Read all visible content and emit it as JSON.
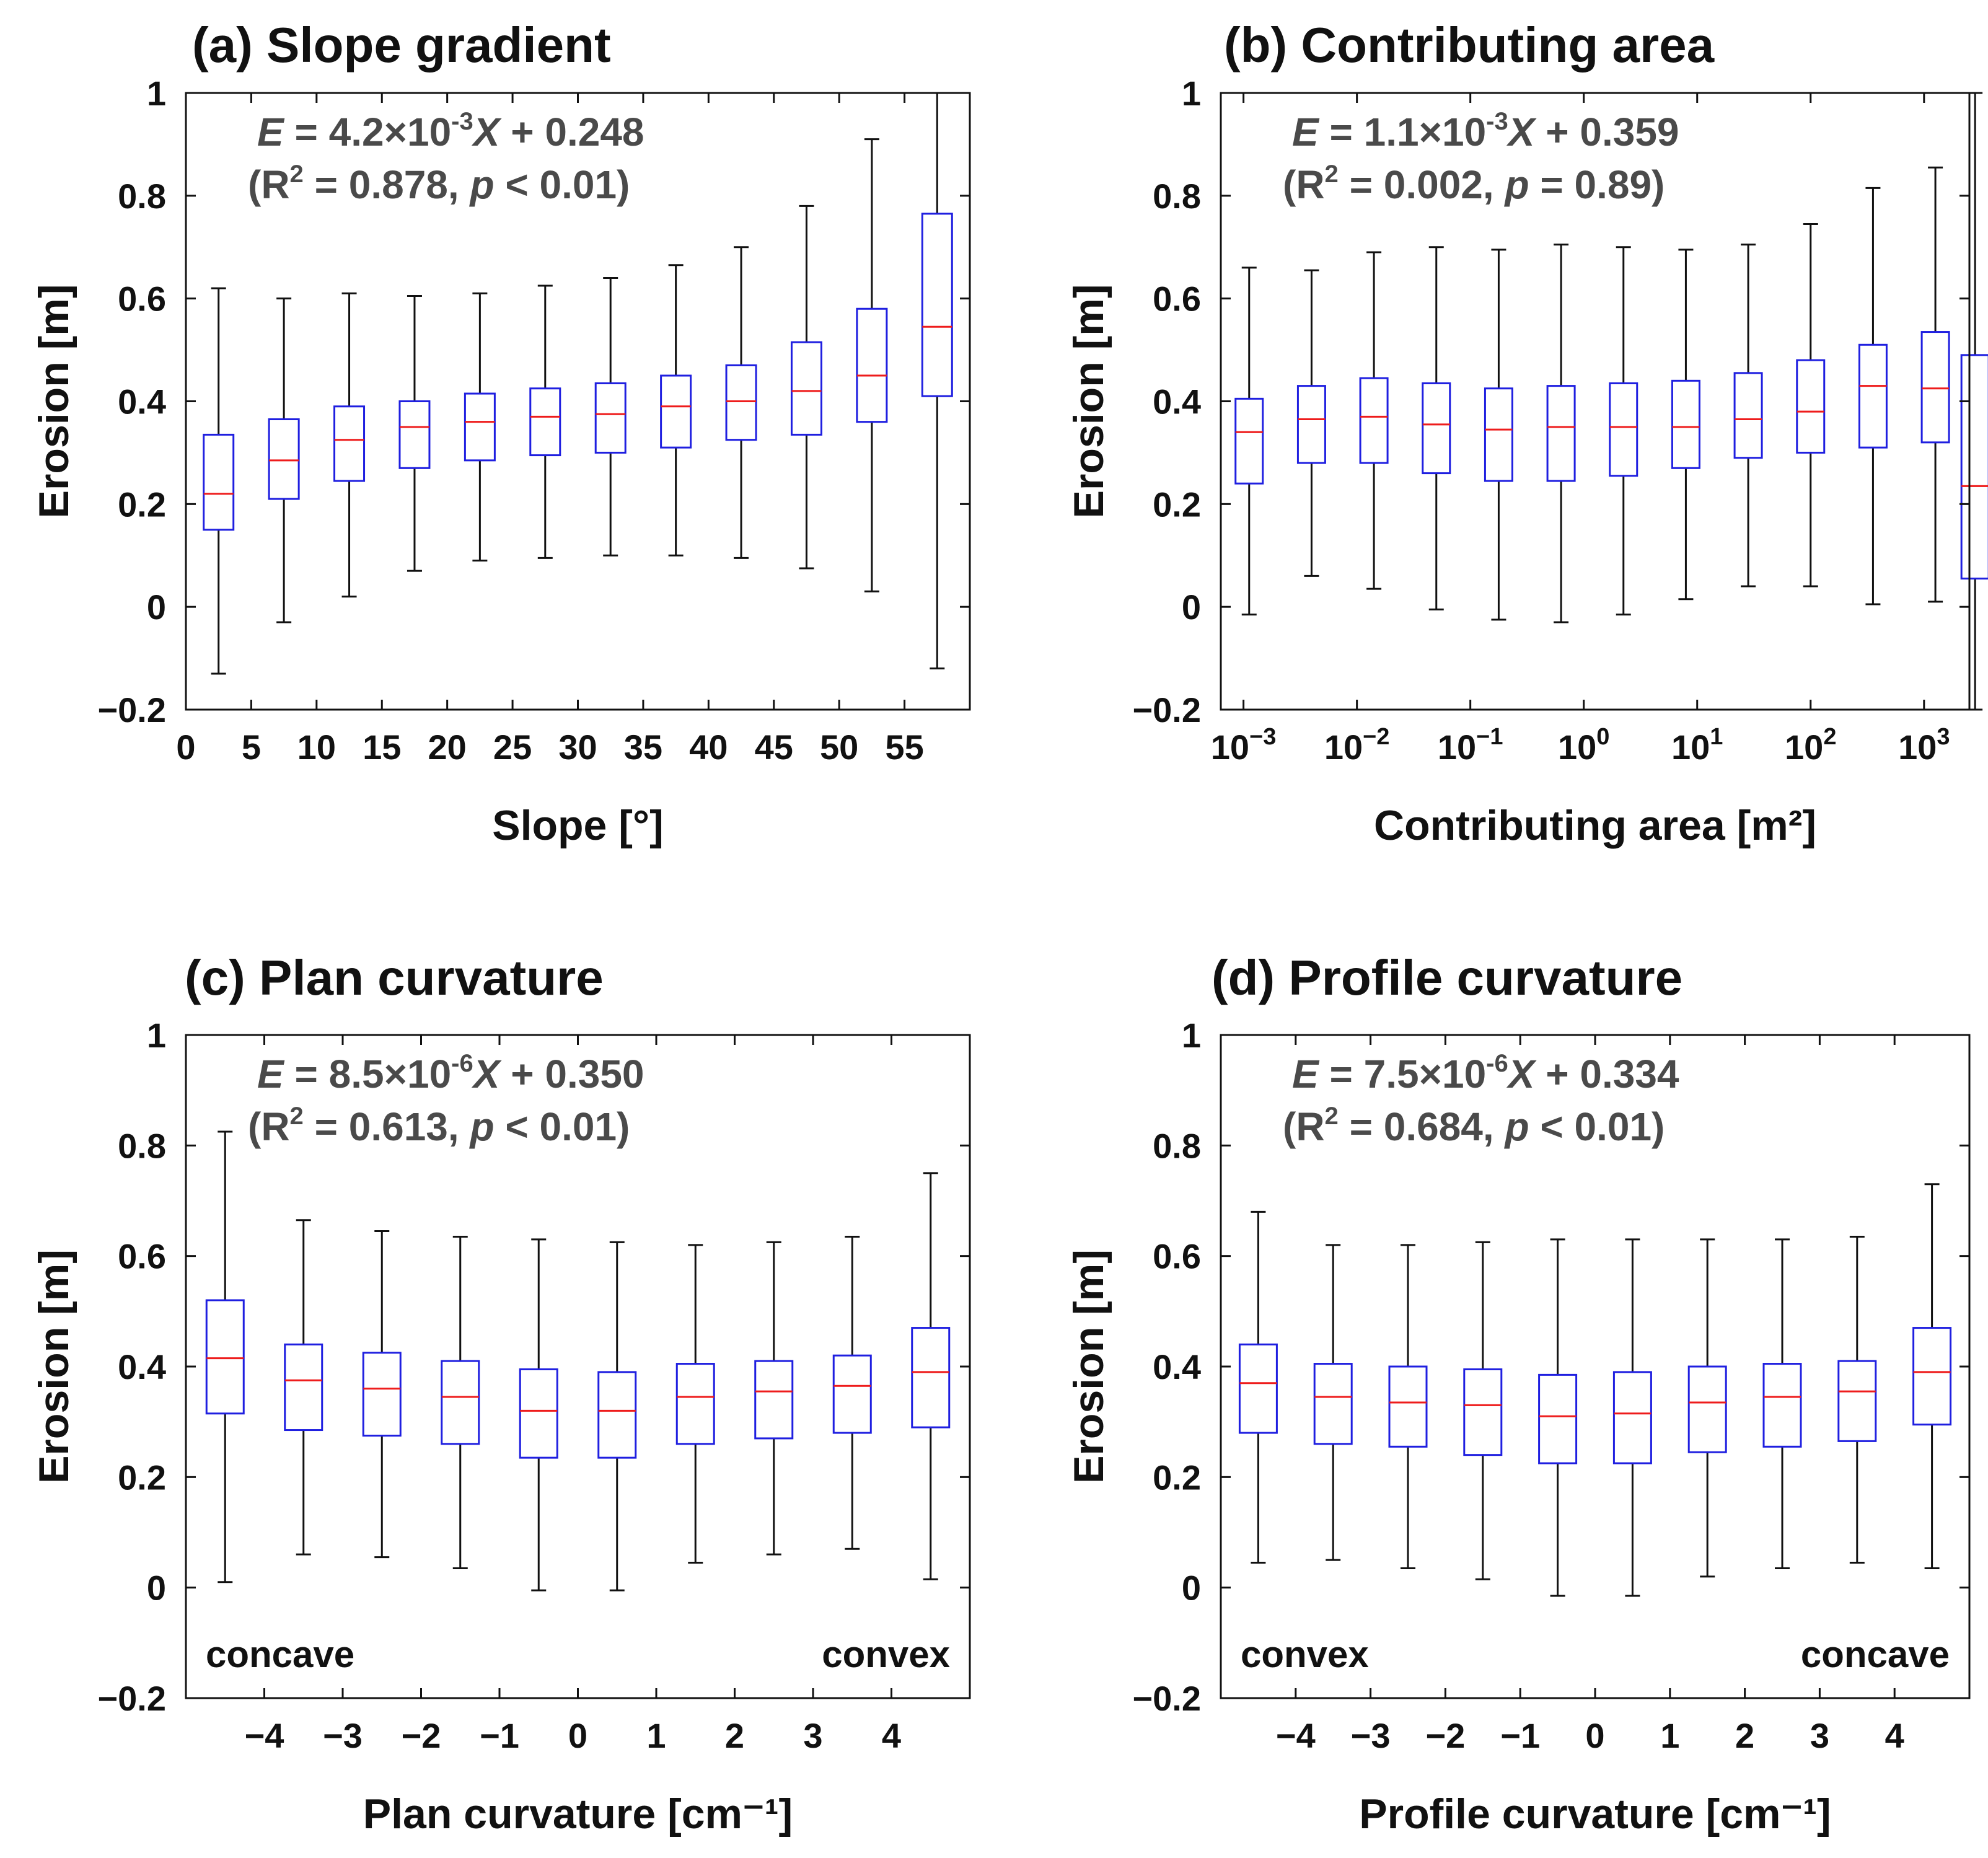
{
  "chart_data": [
    {
      "type": "box",
      "title": "(a) Slope gradient",
      "xlabel": "Slope [°]",
      "ylabel": "Erosion [m]",
      "ylim": [
        -0.2,
        1
      ],
      "yticks": [
        "−0.2",
        "0",
        "0.2",
        "0.4",
        "0.6",
        "0.8",
        "1"
      ],
      "xlim": [
        0,
        60
      ],
      "xticks": [
        {
          "value": 0,
          "label": "0"
        },
        {
          "value": 5,
          "label": "5"
        },
        {
          "value": 10,
          "label": "10"
        },
        {
          "value": 15,
          "label": "15"
        },
        {
          "value": 20,
          "label": "20"
        },
        {
          "value": 25,
          "label": "25"
        },
        {
          "value": 30,
          "label": "30"
        },
        {
          "value": 35,
          "label": "35"
        },
        {
          "value": 40,
          "label": "40"
        },
        {
          "value": 45,
          "label": "45"
        },
        {
          "value": 50,
          "label": "50"
        },
        {
          "value": 55,
          "label": "55"
        }
      ],
      "equation": {
        "lhs": "E",
        "coef": "4.2×10",
        "exp": "-3",
        "var": "X",
        "intercept": "+ 0.248"
      },
      "stats": {
        "r2_label": "R",
        "r2_exp": "2",
        "r2_value": "= 0.878,",
        "p_symbol": "p",
        "p_value": "< 0.01)"
      },
      "corner_labels": {
        "left": "",
        "right": ""
      },
      "boxes": [
        {
          "x": 2.5,
          "min": -0.13,
          "q1": 0.15,
          "median": 0.22,
          "q3": 0.335,
          "max": 0.62
        },
        {
          "x": 7.5,
          "min": -0.03,
          "q1": 0.21,
          "median": 0.285,
          "q3": 0.365,
          "max": 0.6
        },
        {
          "x": 12.5,
          "min": 0.02,
          "q1": 0.245,
          "median": 0.325,
          "q3": 0.39,
          "max": 0.61
        },
        {
          "x": 17.5,
          "min": 0.07,
          "q1": 0.27,
          "median": 0.35,
          "q3": 0.4,
          "max": 0.605
        },
        {
          "x": 22.5,
          "min": 0.09,
          "q1": 0.285,
          "median": 0.36,
          "q3": 0.415,
          "max": 0.61
        },
        {
          "x": 27.5,
          "min": 0.095,
          "q1": 0.295,
          "median": 0.37,
          "q3": 0.425,
          "max": 0.625
        },
        {
          "x": 32.5,
          "min": 0.1,
          "q1": 0.3,
          "median": 0.375,
          "q3": 0.435,
          "max": 0.64
        },
        {
          "x": 37.5,
          "min": 0.1,
          "q1": 0.31,
          "median": 0.39,
          "q3": 0.45,
          "max": 0.665
        },
        {
          "x": 42.5,
          "min": 0.095,
          "q1": 0.325,
          "median": 0.4,
          "q3": 0.47,
          "max": 0.7
        },
        {
          "x": 47.5,
          "min": 0.075,
          "q1": 0.335,
          "median": 0.42,
          "q3": 0.515,
          "max": 0.78
        },
        {
          "x": 52.5,
          "min": 0.03,
          "q1": 0.36,
          "median": 0.45,
          "q3": 0.58,
          "max": 0.91
        },
        {
          "x": 57.5,
          "min": -0.12,
          "q1": 0.41,
          "median": 0.545,
          "q3": 0.765,
          "max": 1.0
        }
      ]
    },
    {
      "type": "box",
      "title": "(b) Contributing area",
      "xlabel": "Contributing area [m²]",
      "ylabel": "Erosion [m]",
      "ylim": [
        -0.2,
        1
      ],
      "yticks": [
        "−0.2",
        "0",
        "0.2",
        "0.4",
        "0.6",
        "0.8",
        "1"
      ],
      "xlim": [
        -3.2,
        3.4
      ],
      "xticks": [
        {
          "value": -3,
          "label": "10",
          "exp": "−3"
        },
        {
          "value": -2,
          "label": "10",
          "exp": "−2"
        },
        {
          "value": -1,
          "label": "10",
          "exp": "−1"
        },
        {
          "value": 0,
          "label": "10",
          "exp": "0"
        },
        {
          "value": 1,
          "label": "10",
          "exp": "1"
        },
        {
          "value": 2,
          "label": "10",
          "exp": "2"
        },
        {
          "value": 3,
          "label": "10",
          "exp": "3"
        }
      ],
      "equation": {
        "lhs": "E",
        "coef": "1.1×10",
        "exp": "-3",
        "var": "X",
        "intercept": "+ 0.359"
      },
      "stats": {
        "r2_label": "R",
        "r2_exp": "2",
        "r2_value": "= 0.002,",
        "p_symbol": "p",
        "p_value": "= 0.89)"
      },
      "corner_labels": {
        "left": "",
        "right": ""
      },
      "boxes": [
        {
          "x": -2.95,
          "min": -0.015,
          "q1": 0.24,
          "median": 0.34,
          "q3": 0.405,
          "max": 0.66
        },
        {
          "x": -2.4,
          "min": 0.06,
          "q1": 0.28,
          "median": 0.365,
          "q3": 0.43,
          "max": 0.655
        },
        {
          "x": -1.85,
          "min": 0.035,
          "q1": 0.28,
          "median": 0.37,
          "q3": 0.445,
          "max": 0.69
        },
        {
          "x": -1.3,
          "min": -0.005,
          "q1": 0.26,
          "median": 0.355,
          "q3": 0.435,
          "max": 0.7
        },
        {
          "x": -0.75,
          "min": -0.025,
          "q1": 0.245,
          "median": 0.345,
          "q3": 0.425,
          "max": 0.695
        },
        {
          "x": -0.2,
          "min": -0.03,
          "q1": 0.245,
          "median": 0.35,
          "q3": 0.43,
          "max": 0.705
        },
        {
          "x": 0.35,
          "min": -0.015,
          "q1": 0.255,
          "median": 0.35,
          "q3": 0.435,
          "max": 0.7
        },
        {
          "x": 0.9,
          "min": 0.015,
          "q1": 0.27,
          "median": 0.35,
          "q3": 0.44,
          "max": 0.695
        },
        {
          "x": 1.45,
          "min": 0.04,
          "q1": 0.29,
          "median": 0.365,
          "q3": 0.455,
          "max": 0.705
        },
        {
          "x": 2.0,
          "min": 0.04,
          "q1": 0.3,
          "median": 0.38,
          "q3": 0.48,
          "max": 0.745
        },
        {
          "x": 2.55,
          "min": 0.005,
          "q1": 0.31,
          "median": 0.43,
          "q3": 0.51,
          "max": 0.815
        },
        {
          "x": 3.1,
          "min": 0.01,
          "q1": 0.32,
          "median": 0.425,
          "q3": 0.535,
          "max": 0.855
        },
        {
          "x": 3.45,
          "min": -0.2,
          "q1": 0.055,
          "median": 0.235,
          "q3": 0.49,
          "max": 1.0
        }
      ]
    },
    {
      "type": "box",
      "title": "(c) Plan curvature",
      "xlabel": "Plan curvature [cm⁻¹]",
      "ylabel": "Erosion [m]",
      "ylim": [
        -0.2,
        1
      ],
      "yticks": [
        "−0.2",
        "0",
        "0.2",
        "0.4",
        "0.6",
        "0.8",
        "1"
      ],
      "xlim": [
        -5,
        5
      ],
      "xticks": [
        {
          "value": -4,
          "label": "−4"
        },
        {
          "value": -3,
          "label": "−3"
        },
        {
          "value": -2,
          "label": "−2"
        },
        {
          "value": -1,
          "label": "−1"
        },
        {
          "value": 0,
          "label": "0"
        },
        {
          "value": 1,
          "label": "1"
        },
        {
          "value": 2,
          "label": "2"
        },
        {
          "value": 3,
          "label": "3"
        },
        {
          "value": 4,
          "label": "4"
        }
      ],
      "equation": {
        "lhs": "E",
        "coef": "8.5×10",
        "exp": "-6",
        "var": "X",
        "intercept": "+ 0.350"
      },
      "stats": {
        "r2_label": "R",
        "r2_exp": "2",
        "r2_value": "= 0.613,",
        "p_symbol": "p",
        "p_value": "< 0.01)"
      },
      "corner_labels": {
        "left": "concave",
        "right": "convex"
      },
      "boxes": [
        {
          "x": -4.5,
          "min": 0.01,
          "q1": 0.315,
          "median": 0.415,
          "q3": 0.52,
          "max": 0.825
        },
        {
          "x": -3.5,
          "min": 0.06,
          "q1": 0.285,
          "median": 0.375,
          "q3": 0.44,
          "max": 0.665
        },
        {
          "x": -2.5,
          "min": 0.055,
          "q1": 0.275,
          "median": 0.36,
          "q3": 0.425,
          "max": 0.645
        },
        {
          "x": -1.5,
          "min": 0.035,
          "q1": 0.26,
          "median": 0.345,
          "q3": 0.41,
          "max": 0.635
        },
        {
          "x": -0.5,
          "min": -0.005,
          "q1": 0.235,
          "median": 0.32,
          "q3": 0.395,
          "max": 0.63
        },
        {
          "x": 0.5,
          "min": -0.005,
          "q1": 0.235,
          "median": 0.32,
          "q3": 0.39,
          "max": 0.625
        },
        {
          "x": 1.5,
          "min": 0.045,
          "q1": 0.26,
          "median": 0.345,
          "q3": 0.405,
          "max": 0.62
        },
        {
          "x": 2.5,
          "min": 0.06,
          "q1": 0.27,
          "median": 0.355,
          "q3": 0.41,
          "max": 0.625
        },
        {
          "x": 3.5,
          "min": 0.07,
          "q1": 0.28,
          "median": 0.365,
          "q3": 0.42,
          "max": 0.635
        },
        {
          "x": 4.5,
          "min": 0.015,
          "q1": 0.29,
          "median": 0.39,
          "q3": 0.47,
          "max": 0.75
        }
      ]
    },
    {
      "type": "box",
      "title": "(d) Profile curvature",
      "xlabel": "Profile curvature [cm⁻¹]",
      "ylabel": "Erosion [m]",
      "ylim": [
        -0.2,
        1
      ],
      "yticks": [
        "−0.2",
        "0",
        "0.2",
        "0.4",
        "0.6",
        "0.8",
        "1"
      ],
      "xlim": [
        -5,
        5
      ],
      "xticks": [
        {
          "value": -4,
          "label": "−4"
        },
        {
          "value": -3,
          "label": "−3"
        },
        {
          "value": -2,
          "label": "−2"
        },
        {
          "value": -1,
          "label": "−1"
        },
        {
          "value": 0,
          "label": "0"
        },
        {
          "value": 1,
          "label": "1"
        },
        {
          "value": 2,
          "label": "2"
        },
        {
          "value": 3,
          "label": "3"
        },
        {
          "value": 4,
          "label": "4"
        }
      ],
      "equation": {
        "lhs": "E",
        "coef": "7.5×10",
        "exp": "-6",
        "var": "X",
        "intercept": "+ 0.334"
      },
      "stats": {
        "r2_label": "R",
        "r2_exp": "2",
        "r2_value": "= 0.684,",
        "p_symbol": "p",
        "p_value": "< 0.01)"
      },
      "corner_labels": {
        "left": "convex",
        "right": "concave"
      },
      "boxes": [
        {
          "x": -4.5,
          "min": 0.045,
          "q1": 0.28,
          "median": 0.37,
          "q3": 0.44,
          "max": 0.68
        },
        {
          "x": -3.5,
          "min": 0.05,
          "q1": 0.26,
          "median": 0.345,
          "q3": 0.405,
          "max": 0.62
        },
        {
          "x": -2.5,
          "min": 0.035,
          "q1": 0.255,
          "median": 0.335,
          "q3": 0.4,
          "max": 0.62
        },
        {
          "x": -1.5,
          "min": 0.015,
          "q1": 0.24,
          "median": 0.33,
          "q3": 0.395,
          "max": 0.625
        },
        {
          "x": -0.5,
          "min": -0.015,
          "q1": 0.225,
          "median": 0.31,
          "q3": 0.385,
          "max": 0.63
        },
        {
          "x": 0.5,
          "min": -0.015,
          "q1": 0.225,
          "median": 0.315,
          "q3": 0.39,
          "max": 0.63
        },
        {
          "x": 1.5,
          "min": 0.02,
          "q1": 0.245,
          "median": 0.335,
          "q3": 0.4,
          "max": 0.63
        },
        {
          "x": 2.5,
          "min": 0.035,
          "q1": 0.255,
          "median": 0.345,
          "q3": 0.405,
          "max": 0.63
        },
        {
          "x": 3.5,
          "min": 0.045,
          "q1": 0.265,
          "median": 0.355,
          "q3": 0.41,
          "max": 0.635
        },
        {
          "x": 4.5,
          "min": 0.035,
          "q1": 0.295,
          "median": 0.39,
          "q3": 0.47,
          "max": 0.73
        }
      ]
    }
  ],
  "colors": {
    "box": "#1f1fe0",
    "median": "#ee1c1c",
    "whisker": "#111111",
    "axis": "#111111",
    "equation": "#4a4a4a"
  }
}
